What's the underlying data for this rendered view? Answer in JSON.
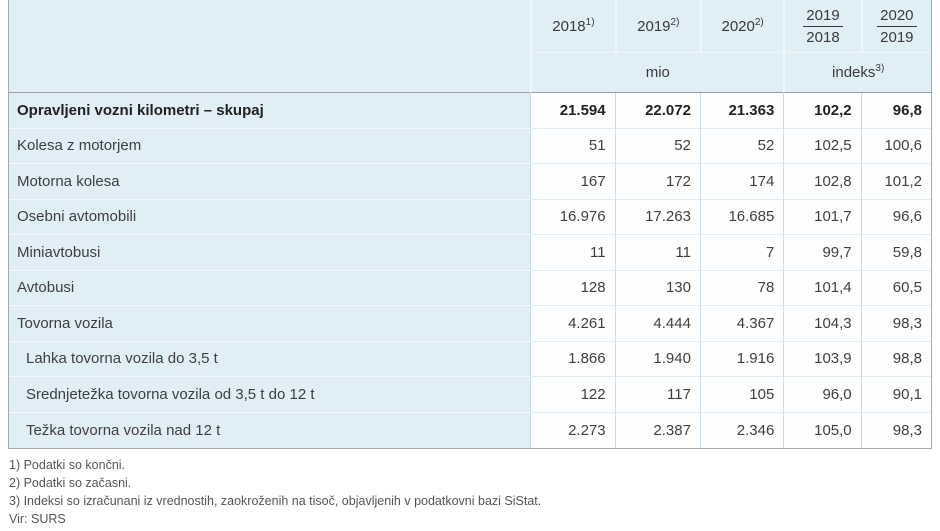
{
  "chart_data": {
    "type": "table",
    "columns": {
      "years": [
        {
          "label": "2018",
          "note": "1)"
        },
        {
          "label": "2019",
          "note": "2)"
        },
        {
          "label": "2020",
          "note": "2)"
        }
      ],
      "ratios": [
        {
          "numerator": "2019",
          "denominator": "2018"
        },
        {
          "numerator": "2020",
          "denominator": "2019"
        }
      ],
      "unit_mio": "mio",
      "unit_indeks": "indeks",
      "unit_indeks_note": "3)"
    },
    "rows": [
      {
        "label": "Opravljeni vozni kilometri – skupaj",
        "bold": true,
        "indent": false,
        "values": [
          "21.594",
          "22.072",
          "21.363",
          "102,2",
          "96,8"
        ]
      },
      {
        "label": "Kolesa z motorjem",
        "bold": false,
        "indent": false,
        "values": [
          "51",
          "52",
          "52",
          "102,5",
          "100,6"
        ]
      },
      {
        "label": "Motorna kolesa",
        "bold": false,
        "indent": false,
        "values": [
          "167",
          "172",
          "174",
          "102,8",
          "101,2"
        ]
      },
      {
        "label": "Osebni avtomobili",
        "bold": false,
        "indent": false,
        "values": [
          "16.976",
          "17.263",
          "16.685",
          "101,7",
          "96,6"
        ]
      },
      {
        "label": "Miniavtobusi",
        "bold": false,
        "indent": false,
        "values": [
          "11",
          "11",
          "7",
          "99,7",
          "59,8"
        ]
      },
      {
        "label": "Avtobusi",
        "bold": false,
        "indent": false,
        "values": [
          "128",
          "130",
          "78",
          "101,4",
          "60,5"
        ]
      },
      {
        "label": "Tovorna vozila",
        "bold": false,
        "indent": false,
        "values": [
          "4.261",
          "4.444",
          "4.367",
          "104,3",
          "98,3"
        ]
      },
      {
        "label": "Lahka tovorna vozila do 3,5 t",
        "bold": false,
        "indent": true,
        "values": [
          "1.866",
          "1.940",
          "1.916",
          "103,9",
          "98,8"
        ]
      },
      {
        "label": "Srednjetežka tovorna vozila od 3,5 t do 12 t",
        "bold": false,
        "indent": true,
        "values": [
          "122",
          "117",
          "105",
          "96,0",
          "90,1"
        ]
      },
      {
        "label": "Težka tovorna vozila nad 12 t",
        "bold": false,
        "indent": true,
        "values": [
          "2.273",
          "2.387",
          "2.346",
          "105,0",
          "98,3"
        ]
      }
    ],
    "footnotes": [
      "1) Podatki so končni.",
      "2) Podatki so začasni.",
      "3) Indeksi so izračunani iz vrednostih, zaokroženih na tisoč, objavljenih v podatkovni bazi SiStat.",
      "Vir: SURS"
    ]
  },
  "colors": {
    "header_and_label_bg": "#e0eef6",
    "value_cell_bg": "#fdfeff",
    "outer_border": "#a3a9ad",
    "header_bottom_border": "#9b9fa3",
    "grid_vertical": "#ccdce8",
    "grid_horizontal_light": "#e2ecf3",
    "text": "#3f3f3f",
    "footnote_text": "#565656"
  }
}
